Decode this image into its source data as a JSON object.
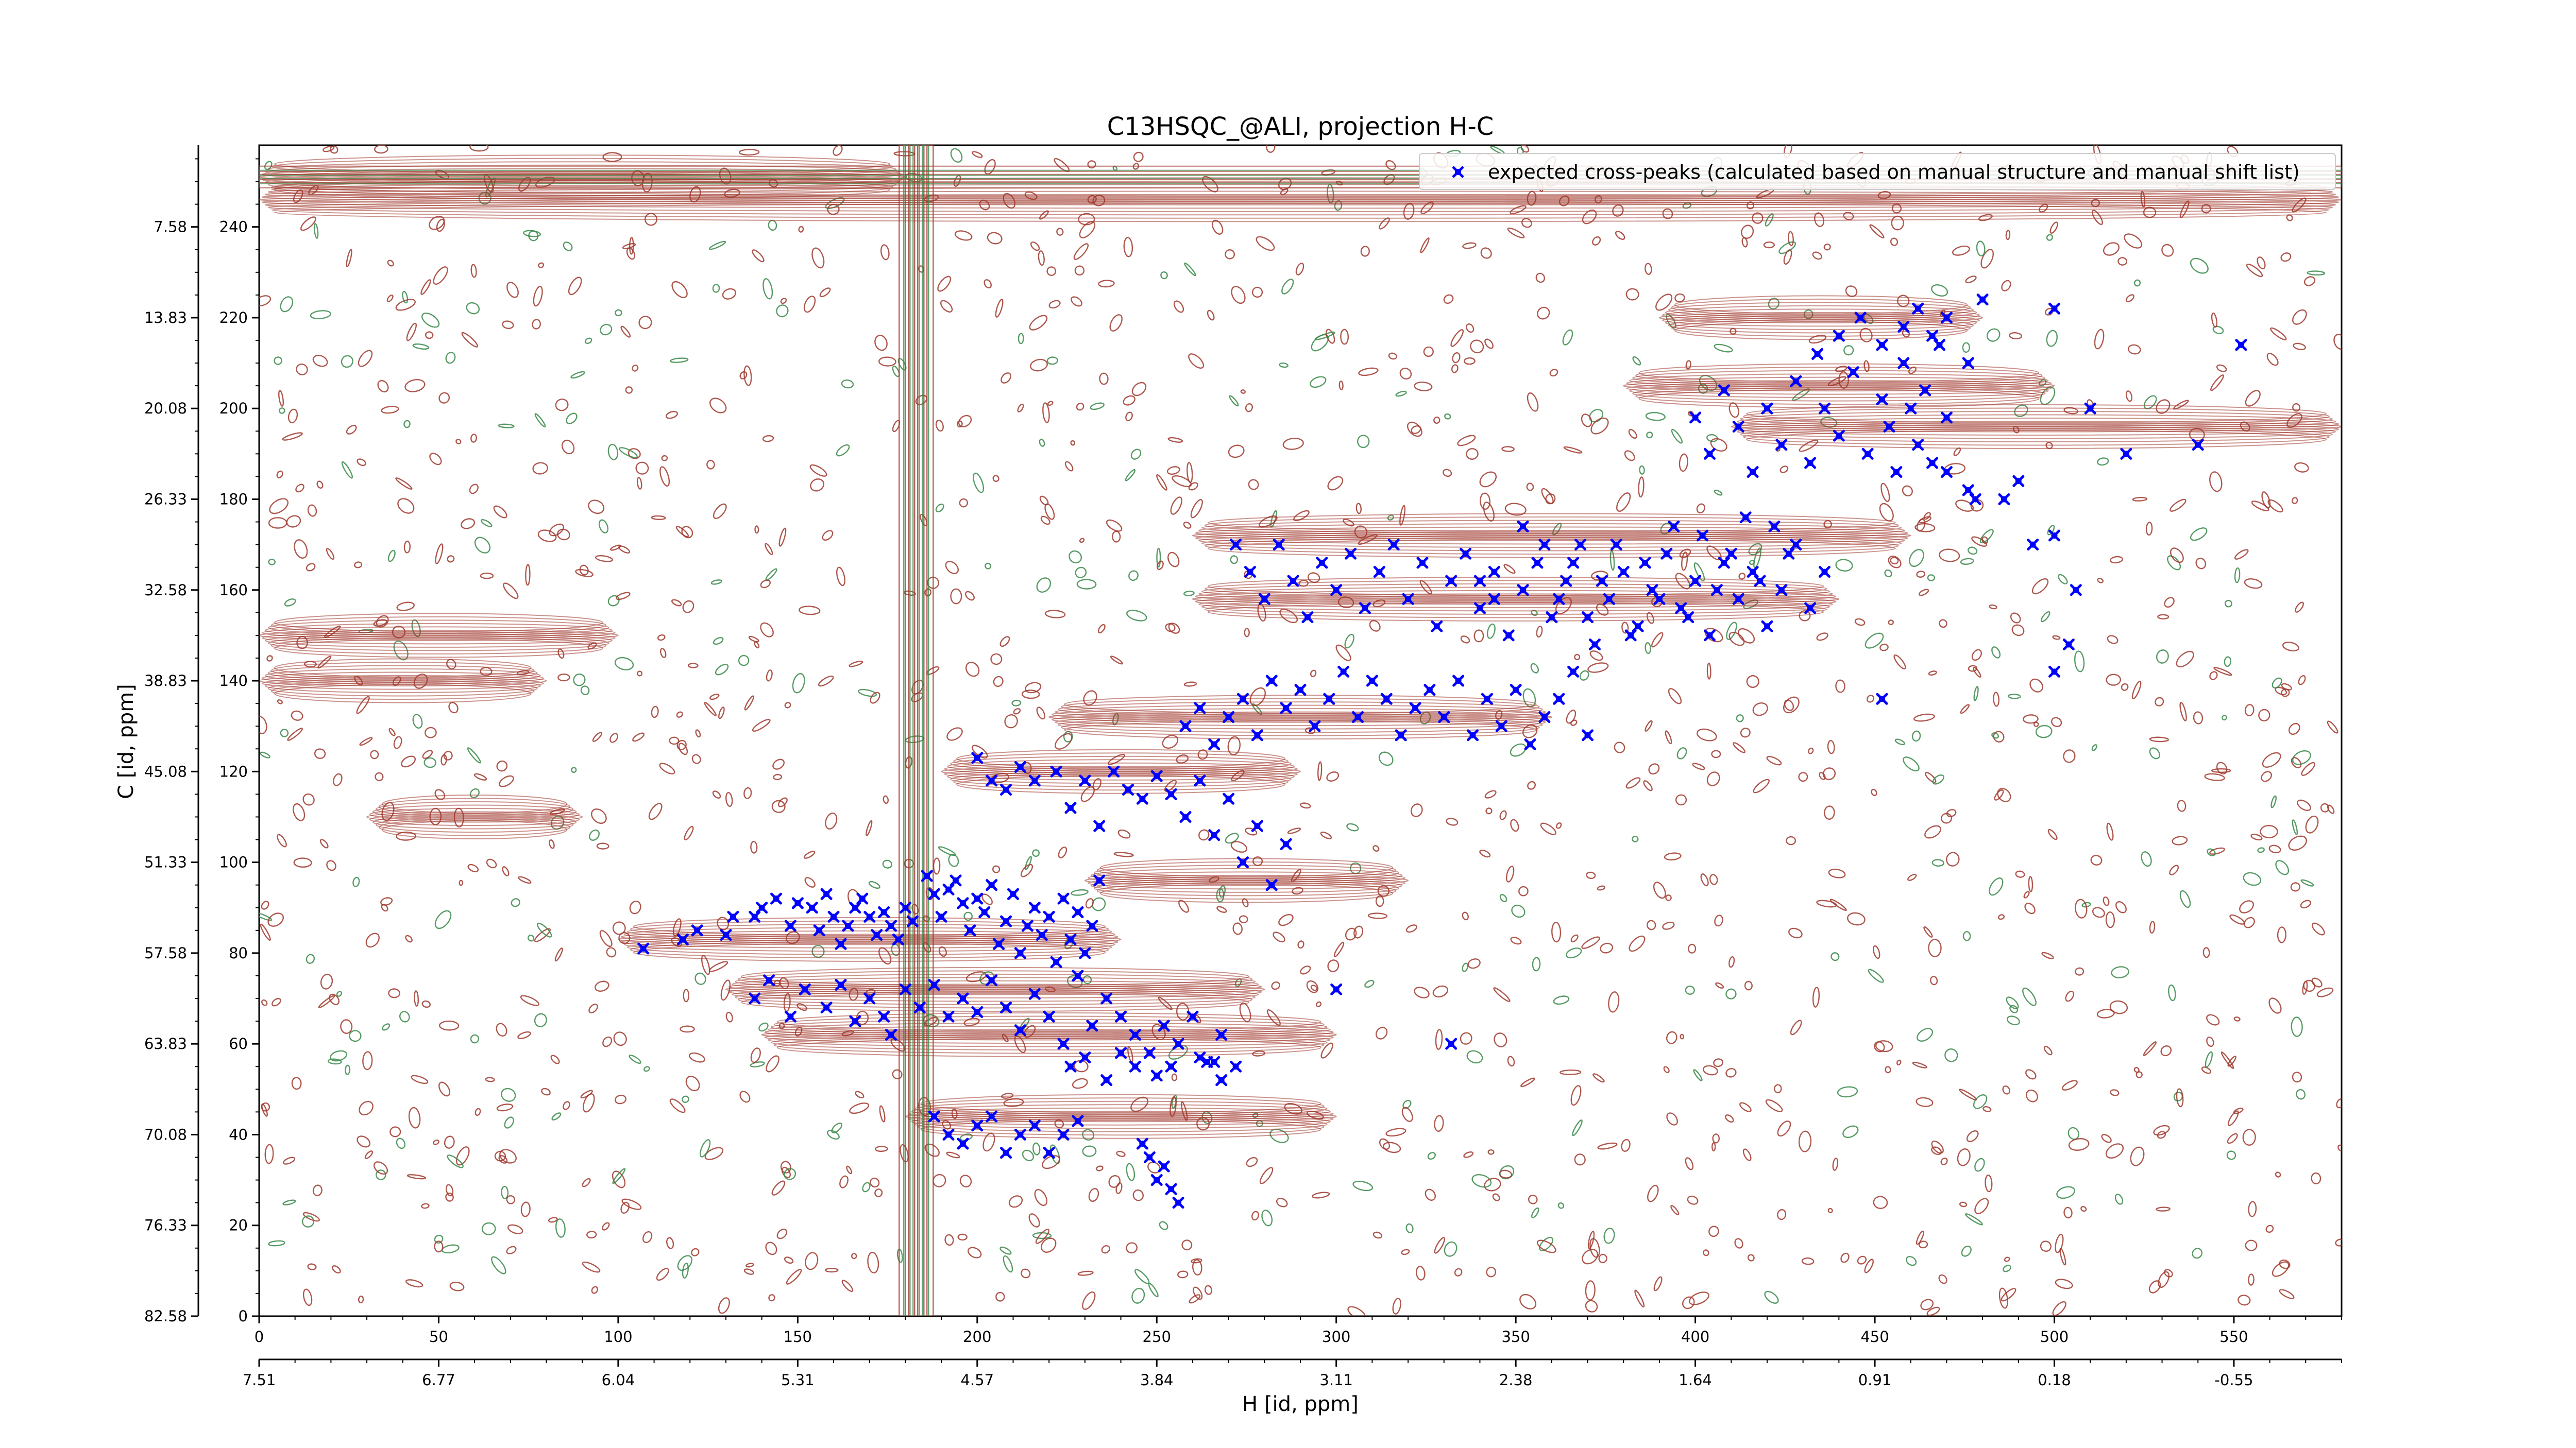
{
  "chart_data": {
    "type": "scatter",
    "title": "C13HSQC_@ALI, projection H-C",
    "xlabel": "H [id, ppm]",
    "ylabel": "C [id, ppm]",
    "xlim": [
      0,
      580
    ],
    "ylim": [
      0,
      258
    ],
    "x_ticks": [
      "0",
      "50",
      "100",
      "150",
      "200",
      "250",
      "300",
      "350",
      "400",
      "450",
      "500",
      "550"
    ],
    "x_tick_values": [
      0,
      50,
      100,
      150,
      200,
      250,
      300,
      350,
      400,
      450,
      500,
      550
    ],
    "x_ppm_ticks": [
      "7.51",
      "6.77",
      "6.04",
      "5.31",
      "4.57",
      "3.84",
      "3.11",
      "2.38",
      "1.64",
      "0.91",
      "0.18",
      "-0.55"
    ],
    "y_ticks": [
      "0",
      "20",
      "40",
      "60",
      "80",
      "100",
      "120",
      "140",
      "160",
      "180",
      "200",
      "220",
      "240"
    ],
    "y_tick_values": [
      0,
      20,
      40,
      60,
      80,
      100,
      120,
      140,
      160,
      180,
      200,
      220,
      240
    ],
    "y_ppm_ticks": [
      "82.58",
      "76.33",
      "70.08",
      "63.83",
      "57.58",
      "51.33",
      "45.08",
      "38.83",
      "32.58",
      "26.33",
      "20.08",
      "13.83",
      "7.58"
    ],
    "y_ppm_tick_values": [
      0,
      20,
      40,
      60,
      80,
      100,
      120,
      140,
      160,
      180,
      200,
      220,
      240
    ],
    "legend": {
      "position": "top-right",
      "entries": [
        {
          "label": "expected cross-peaks (calculated based on manual structure and manual shift list)",
          "marker": "x",
          "color": "#0000ff"
        }
      ]
    },
    "colors": {
      "positive_contours": "#a0392e",
      "negative_contours": "#3a8a4a",
      "markers": "#0000ff"
    },
    "series": [
      {
        "name": "expected cross-peaks (calculated based on manual structure and manual shift list)",
        "points": [
          [
            107,
            81
          ],
          [
            118,
            83
          ],
          [
            122,
            85
          ],
          [
            130,
            84
          ],
          [
            132,
            88
          ],
          [
            138,
            88
          ],
          [
            140,
            90
          ],
          [
            144,
            92
          ],
          [
            148,
            86
          ],
          [
            150,
            91
          ],
          [
            154,
            90
          ],
          [
            156,
            85
          ],
          [
            158,
            93
          ],
          [
            160,
            88
          ],
          [
            162,
            82
          ],
          [
            164,
            86
          ],
          [
            166,
            90
          ],
          [
            168,
            92
          ],
          [
            170,
            88
          ],
          [
            172,
            84
          ],
          [
            174,
            89
          ],
          [
            176,
            86
          ],
          [
            178,
            83
          ],
          [
            180,
            90
          ],
          [
            182,
            87
          ],
          [
            186,
            97
          ],
          [
            188,
            93
          ],
          [
            190,
            88
          ],
          [
            192,
            94
          ],
          [
            194,
            96
          ],
          [
            196,
            91
          ],
          [
            198,
            85
          ],
          [
            200,
            92
          ],
          [
            202,
            89
          ],
          [
            204,
            95
          ],
          [
            206,
            82
          ],
          [
            208,
            87
          ],
          [
            210,
            93
          ],
          [
            212,
            80
          ],
          [
            214,
            86
          ],
          [
            216,
            90
          ],
          [
            218,
            84
          ],
          [
            220,
            88
          ],
          [
            222,
            78
          ],
          [
            224,
            92
          ],
          [
            226,
            83
          ],
          [
            228,
            89
          ],
          [
            230,
            80
          ],
          [
            232,
            86
          ],
          [
            234,
            96
          ],
          [
            138,
            70
          ],
          [
            142,
            74
          ],
          [
            148,
            66
          ],
          [
            152,
            72
          ],
          [
            158,
            68
          ],
          [
            162,
            73
          ],
          [
            166,
            65
          ],
          [
            170,
            70
          ],
          [
            174,
            66
          ],
          [
            176,
            62
          ],
          [
            180,
            72
          ],
          [
            184,
            68
          ],
          [
            188,
            73
          ],
          [
            192,
            66
          ],
          [
            196,
            70
          ],
          [
            200,
            67
          ],
          [
            204,
            74
          ],
          [
            208,
            68
          ],
          [
            212,
            63
          ],
          [
            216,
            71
          ],
          [
            220,
            66
          ],
          [
            224,
            60
          ],
          [
            228,
            75
          ],
          [
            232,
            64
          ],
          [
            236,
            70
          ],
          [
            240,
            66
          ],
          [
            244,
            62
          ],
          [
            248,
            58
          ],
          [
            252,
            64
          ],
          [
            256,
            60
          ],
          [
            260,
            66
          ],
          [
            264,
            56
          ],
          [
            268,
            62
          ],
          [
            272,
            55
          ],
          [
            226,
            55
          ],
          [
            230,
            57
          ],
          [
            236,
            52
          ],
          [
            240,
            58
          ],
          [
            244,
            55
          ],
          [
            250,
            53
          ],
          [
            254,
            55
          ],
          [
            262,
            57
          ],
          [
            266,
            56
          ],
          [
            268,
            52
          ],
          [
            300,
            72
          ],
          [
            332,
            60
          ],
          [
            188,
            44
          ],
          [
            192,
            40
          ],
          [
            196,
            38
          ],
          [
            200,
            42
          ],
          [
            204,
            44
          ],
          [
            208,
            36
          ],
          [
            212,
            40
          ],
          [
            216,
            42
          ],
          [
            220,
            36
          ],
          [
            224,
            40
          ],
          [
            228,
            43
          ],
          [
            246,
            38
          ],
          [
            248,
            35
          ],
          [
            250,
            30
          ],
          [
            252,
            33
          ],
          [
            254,
            28
          ],
          [
            256,
            25
          ],
          [
            200,
            123
          ],
          [
            204,
            118
          ],
          [
            208,
            116
          ],
          [
            212,
            121
          ],
          [
            216,
            118
          ],
          [
            222,
            120
          ],
          [
            226,
            112
          ],
          [
            230,
            118
          ],
          [
            234,
            108
          ],
          [
            238,
            120
          ],
          [
            242,
            116
          ],
          [
            246,
            114
          ],
          [
            250,
            119
          ],
          [
            254,
            115
          ],
          [
            258,
            110
          ],
          [
            262,
            118
          ],
          [
            266,
            106
          ],
          [
            270,
            114
          ],
          [
            274,
            100
          ],
          [
            278,
            108
          ],
          [
            282,
            95
          ],
          [
            286,
            104
          ],
          [
            258,
            130
          ],
          [
            262,
            134
          ],
          [
            266,
            126
          ],
          [
            270,
            132
          ],
          [
            274,
            136
          ],
          [
            278,
            128
          ],
          [
            282,
            140
          ],
          [
            286,
            134
          ],
          [
            290,
            138
          ],
          [
            294,
            130
          ],
          [
            298,
            136
          ],
          [
            302,
            142
          ],
          [
            306,
            132
          ],
          [
            310,
            140
          ],
          [
            314,
            136
          ],
          [
            318,
            128
          ],
          [
            322,
            134
          ],
          [
            326,
            138
          ],
          [
            330,
            132
          ],
          [
            334,
            140
          ],
          [
            338,
            128
          ],
          [
            342,
            136
          ],
          [
            346,
            130
          ],
          [
            350,
            138
          ],
          [
            354,
            126
          ],
          [
            358,
            132
          ],
          [
            362,
            136
          ],
          [
            366,
            142
          ],
          [
            370,
            128
          ],
          [
            272,
            170
          ],
          [
            276,
            164
          ],
          [
            280,
            158
          ],
          [
            284,
            170
          ],
          [
            288,
            162
          ],
          [
            292,
            154
          ],
          [
            296,
            166
          ],
          [
            300,
            160
          ],
          [
            304,
            168
          ],
          [
            308,
            156
          ],
          [
            312,
            164
          ],
          [
            316,
            170
          ],
          [
            320,
            158
          ],
          [
            324,
            166
          ],
          [
            328,
            152
          ],
          [
            332,
            162
          ],
          [
            336,
            168
          ],
          [
            340,
            156
          ],
          [
            344,
            164
          ],
          [
            348,
            150
          ],
          [
            352,
            160
          ],
          [
            356,
            166
          ],
          [
            360,
            154
          ],
          [
            364,
            162
          ],
          [
            368,
            170
          ],
          [
            372,
            148
          ],
          [
            376,
            158
          ],
          [
            380,
            164
          ],
          [
            384,
            152
          ],
          [
            388,
            160
          ],
          [
            392,
            168
          ],
          [
            396,
            156
          ],
          [
            400,
            162
          ],
          [
            404,
            150
          ],
          [
            408,
            166
          ],
          [
            412,
            158
          ],
          [
            416,
            164
          ],
          [
            420,
            152
          ],
          [
            424,
            160
          ],
          [
            428,
            170
          ],
          [
            432,
            156
          ],
          [
            436,
            164
          ],
          [
            340,
            162
          ],
          [
            344,
            158
          ],
          [
            352,
            174
          ],
          [
            358,
            170
          ],
          [
            362,
            158
          ],
          [
            366,
            166
          ],
          [
            370,
            154
          ],
          [
            374,
            162
          ],
          [
            378,
            170
          ],
          [
            382,
            150
          ],
          [
            386,
            166
          ],
          [
            390,
            158
          ],
          [
            394,
            174
          ],
          [
            398,
            154
          ],
          [
            402,
            172
          ],
          [
            406,
            160
          ],
          [
            410,
            168
          ],
          [
            414,
            176
          ],
          [
            418,
            162
          ],
          [
            422,
            174
          ],
          [
            426,
            168
          ],
          [
            400,
            198
          ],
          [
            404,
            190
          ],
          [
            408,
            204
          ],
          [
            412,
            196
          ],
          [
            416,
            186
          ],
          [
            420,
            200
          ],
          [
            424,
            192
          ],
          [
            428,
            206
          ],
          [
            432,
            188
          ],
          [
            436,
            200
          ],
          [
            440,
            194
          ],
          [
            444,
            208
          ],
          [
            448,
            190
          ],
          [
            452,
            202
          ],
          [
            454,
            196
          ],
          [
            456,
            186
          ],
          [
            458,
            210
          ],
          [
            460,
            200
          ],
          [
            462,
            192
          ],
          [
            464,
            204
          ],
          [
            466,
            188
          ],
          [
            468,
            214
          ],
          [
            470,
            198
          ],
          [
            434,
            212
          ],
          [
            440,
            216
          ],
          [
            446,
            220
          ],
          [
            452,
            214
          ],
          [
            458,
            218
          ],
          [
            462,
            222
          ],
          [
            466,
            216
          ],
          [
            470,
            220
          ],
          [
            476,
            210
          ],
          [
            480,
            224
          ],
          [
            486,
            180
          ],
          [
            500,
            222
          ],
          [
            510,
            200
          ],
          [
            520,
            190
          ],
          [
            540,
            192
          ],
          [
            552,
            214
          ],
          [
            500,
            172
          ],
          [
            506,
            160
          ],
          [
            500,
            142
          ],
          [
            504,
            148
          ],
          [
            452,
            136
          ],
          [
            470,
            186
          ],
          [
            476,
            182
          ],
          [
            478,
            180
          ],
          [
            490,
            184
          ],
          [
            494,
            170
          ]
        ]
      }
    ]
  }
}
